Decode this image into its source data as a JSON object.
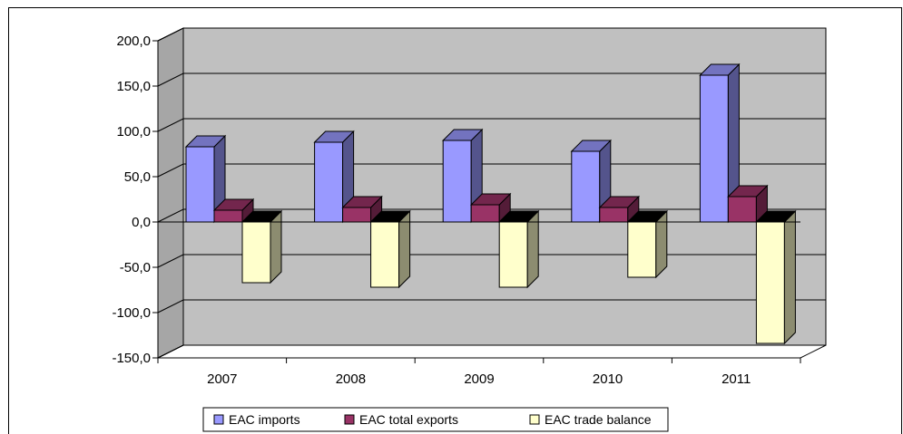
{
  "chart_data": {
    "type": "bar",
    "categories": [
      "2007",
      "2008",
      "2009",
      "2010",
      "2011"
    ],
    "series": [
      {
        "name": "EAC imports",
        "values": [
          83,
          88,
          90,
          78,
          162
        ],
        "color": "#9999ff"
      },
      {
        "name": "EAC total exports",
        "values": [
          13,
          16,
          19,
          16,
          28
        ],
        "color": "#993366"
      },
      {
        "name": "EAC trade balance",
        "values": [
          -67,
          -72,
          -72,
          -61,
          -134
        ],
        "color": "#ffffcc"
      }
    ],
    "y_tick_labels": [
      "200,0",
      "150,0",
      "100,0",
      "50,0",
      "0,0",
      "-50,0",
      "-100,0",
      "-150,0"
    ],
    "ylim": [
      -150,
      200
    ],
    "style": "3d-clustered-column",
    "grid": true,
    "plot_wall_color": "#c0c0c0",
    "legend_position": "bottom"
  }
}
